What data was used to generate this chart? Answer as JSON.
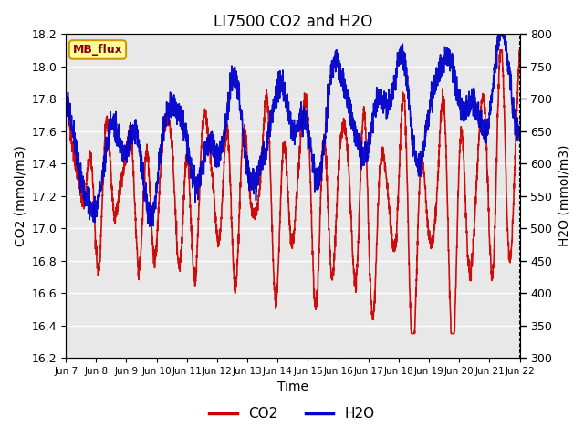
{
  "title": "LI7500 CO2 and H2O",
  "xlabel": "Time",
  "ylabel_left": "CO2 (mmol/m3)",
  "ylabel_right": "H2O (mmol/m3)",
  "ylim_left": [
    16.2,
    18.2
  ],
  "ylim_right": [
    300,
    800
  ],
  "yticks_left": [
    16.2,
    16.4,
    16.6,
    16.8,
    17.0,
    17.2,
    17.4,
    17.6,
    17.8,
    18.0,
    18.2
  ],
  "yticks_right": [
    300,
    350,
    400,
    450,
    500,
    550,
    600,
    650,
    700,
    750,
    800
  ],
  "xtick_labels": [
    "Jun 7",
    "Jun 8",
    "Jun 9",
    "Jun 10",
    "Jun 11",
    "Jun 12",
    "Jun 13",
    "Jun 14",
    "Jun 15",
    "Jun 16",
    "Jun 17",
    "Jun 18",
    "Jun 19",
    "Jun 20",
    "Jun 21",
    "Jun 22"
  ],
  "bg_color": "#e8e8e8",
  "fig_bg_color": "#ffffff",
  "co2_color": "#cc0000",
  "h2o_color": "#0000cc",
  "legend_label_co2": "CO2",
  "legend_label_h2o": "H2O",
  "watermark_text": "MB_flux",
  "watermark_bg": "#ffff99",
  "watermark_border": "#cc9900",
  "co2_linewidth": 1.2,
  "h2o_linewidth": 1.2
}
